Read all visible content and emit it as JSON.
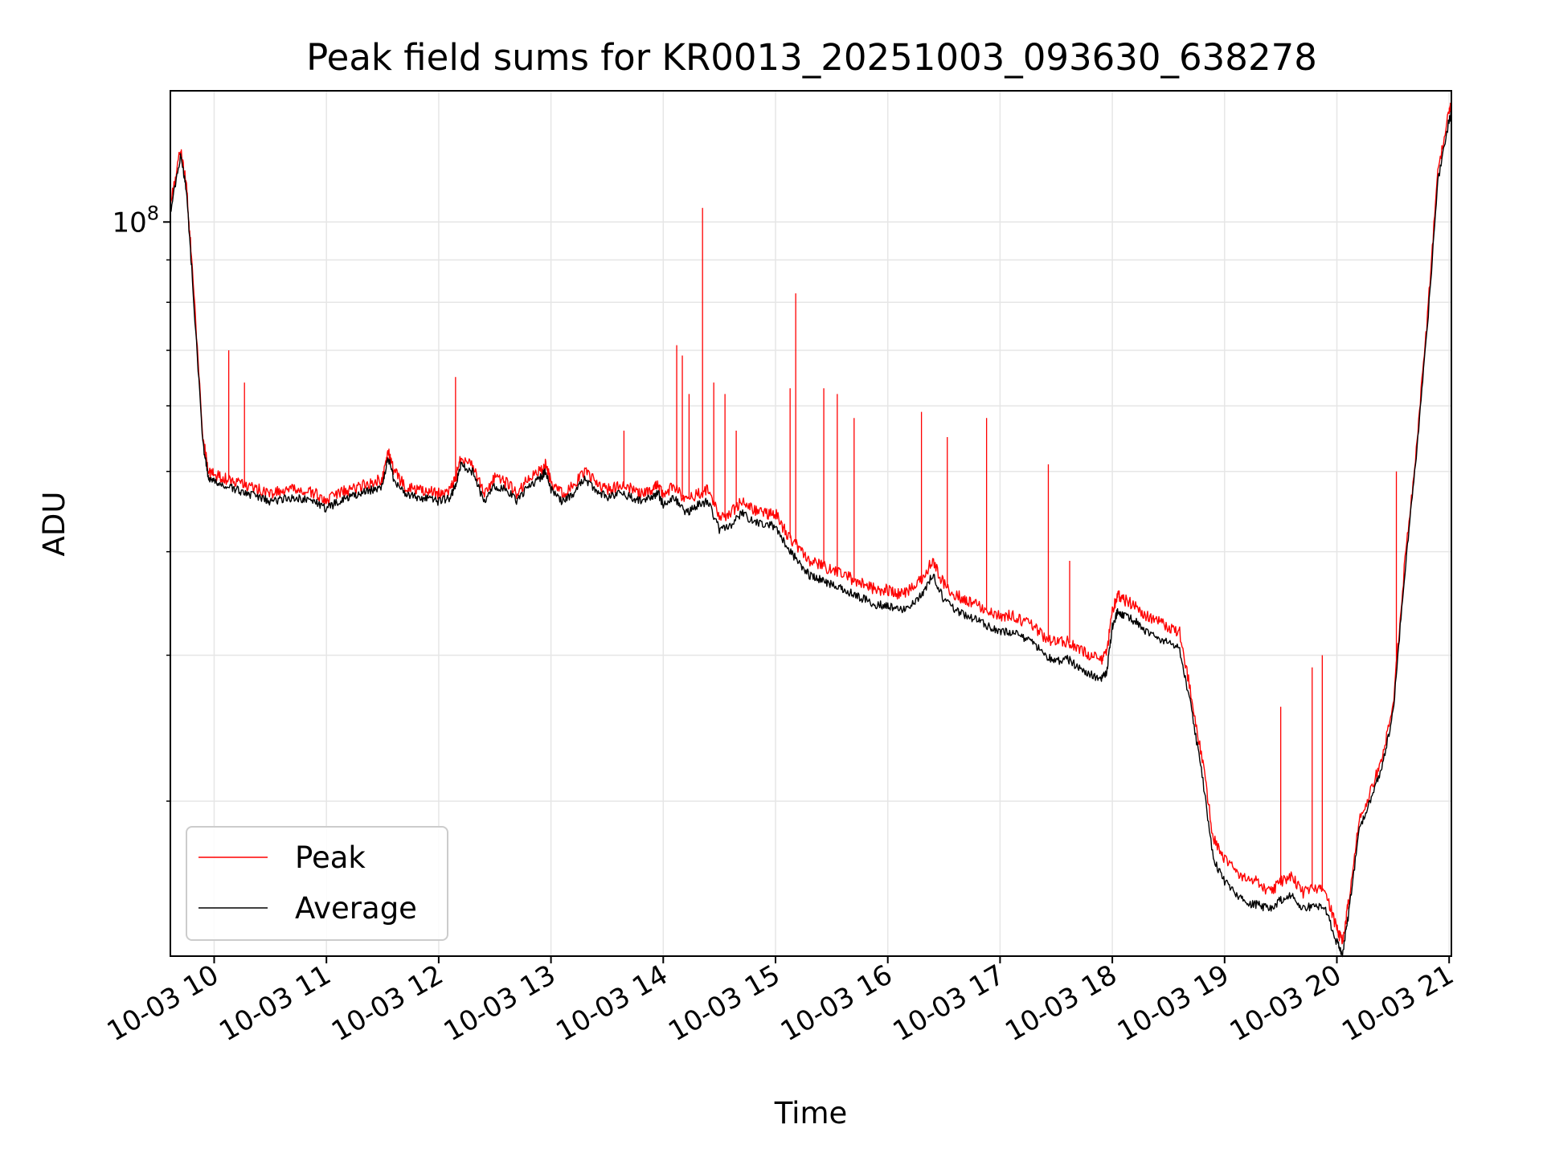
{
  "chart_data": {
    "type": "line",
    "title": "Peak field sums for KR0013_20251003_093630_638278",
    "xlabel": "Time",
    "ylabel": "ADU",
    "y_scale": "log",
    "grid": true,
    "legend_position": "lower-left",
    "x_tick_labels": [
      "10-03 10",
      "10-03 11",
      "10-03 12",
      "10-03 13",
      "10-03 14",
      "10-03 15",
      "10-03 16",
      "10-03 17",
      "10-03 18",
      "10-03 19",
      "10-03 20",
      "10-03 21"
    ],
    "x_tick_hours": [
      10,
      11,
      12,
      13,
      14,
      15,
      16,
      17,
      18,
      19,
      20,
      21
    ],
    "x_range_hours": [
      9.61,
      21.02
    ],
    "y_range": [
      13000000,
      144000000
    ],
    "y_major_ticks": [
      {
        "value": 100000000,
        "base": "10",
        "exponent": "8"
      }
    ],
    "y_minor_ticks": [
      20000000,
      30000000,
      40000000,
      50000000,
      60000000,
      70000000,
      80000000,
      90000000
    ],
    "x_hours": [
      9.61,
      9.7,
      9.75,
      9.8,
      9.9,
      9.95,
      10.0,
      10.1,
      10.2,
      10.3,
      10.4,
      10.5,
      10.6,
      10.7,
      10.8,
      10.9,
      11.0,
      11.1,
      11.2,
      11.3,
      11.4,
      11.5,
      11.55,
      11.6,
      11.7,
      11.8,
      11.9,
      12.0,
      12.1,
      12.15,
      12.2,
      12.3,
      12.4,
      12.5,
      12.6,
      12.7,
      12.8,
      12.9,
      12.95,
      13.0,
      13.1,
      13.2,
      13.3,
      13.4,
      13.5,
      13.6,
      13.7,
      13.8,
      13.9,
      13.95,
      14.0,
      14.1,
      14.2,
      14.3,
      14.4,
      14.5,
      14.6,
      14.7,
      14.8,
      14.9,
      15.0,
      15.1,
      15.2,
      15.3,
      15.4,
      15.5,
      15.6,
      15.7,
      15.8,
      15.9,
      16.0,
      16.1,
      16.2,
      16.3,
      16.4,
      16.5,
      16.6,
      16.7,
      16.8,
      16.9,
      17.0,
      17.1,
      17.2,
      17.3,
      17.4,
      17.5,
      17.6,
      17.7,
      17.8,
      17.9,
      17.95,
      18.0,
      18.05,
      18.1,
      18.2,
      18.3,
      18.4,
      18.5,
      18.6,
      18.7,
      18.8,
      18.9,
      19.0,
      19.1,
      19.2,
      19.3,
      19.4,
      19.5,
      19.6,
      19.7,
      19.8,
      19.9,
      20.0,
      20.05,
      20.1,
      20.2,
      20.3,
      20.4,
      20.5,
      20.6,
      20.7,
      20.8,
      20.9,
      21.0,
      21.02
    ],
    "series": [
      {
        "name": "Peak",
        "color": "#ff0000",
        "values": [
          105000000,
          122000000,
          112000000,
          90000000,
          55000000,
          50000000,
          49500000,
          49000000,
          48500000,
          48000000,
          47500000,
          47000000,
          47300000,
          47500000,
          47300000,
          47000000,
          46000000,
          47000000,
          47500000,
          48000000,
          48500000,
          49000000,
          53000000,
          50000000,
          48000000,
          47500000,
          47300000,
          47000000,
          47500000,
          49000000,
          52000000,
          51000000,
          47000000,
          49000000,
          48500000,
          47000000,
          49000000,
          50000000,
          51000000,
          48500000,
          47000000,
          48000000,
          50000000,
          48500000,
          47500000,
          48000000,
          47700000,
          47000000,
          47500000,
          48200000,
          47000000,
          48000000,
          46000000,
          47000000,
          47500000,
          44000000,
          44500000,
          46000000,
          45000000,
          44500000,
          44500000,
          42000000,
          40500000,
          39000000,
          38500000,
          38000000,
          37500000,
          37000000,
          36500000,
          36000000,
          36000000,
          35500000,
          36000000,
          37000000,
          39000000,
          36500000,
          35500000,
          35000000,
          34500000,
          34000000,
          33500000,
          33500000,
          33000000,
          32500000,
          31500000,
          31000000,
          31200000,
          30500000,
          30000000,
          29500000,
          30200000,
          34000000,
          35500000,
          35000000,
          34500000,
          33500000,
          33000000,
          32500000,
          32000000,
          27000000,
          22500000,
          18000000,
          17000000,
          16500000,
          16000000,
          16000000,
          15500000,
          16000000,
          16200000,
          15500000,
          15800000,
          15500000,
          14000000,
          13500000,
          15000000,
          19000000,
          20500000,
          22500000,
          26000000,
          38000000,
          52000000,
          75000000,
          115000000,
          136000000,
          138000000
        ]
      },
      {
        "name": "Average",
        "color": "#000000",
        "values": [
          103000000,
          120000000,
          110000000,
          88000000,
          54000000,
          49000000,
          48500000,
          48000000,
          47500000,
          47000000,
          46500000,
          46000000,
          46300000,
          46500000,
          46300000,
          46000000,
          45000000,
          46000000,
          46500000,
          47000000,
          47500000,
          48000000,
          52000000,
          49000000,
          47000000,
          46500000,
          46300000,
          46000000,
          46500000,
          48000000,
          51000000,
          50000000,
          46000000,
          48000000,
          47500000,
          46000000,
          48000000,
          49000000,
          50000000,
          47500000,
          46000000,
          47000000,
          49000000,
          47500000,
          46500000,
          47000000,
          46700000,
          46000000,
          46500000,
          47200000,
          45500000,
          46500000,
          44500000,
          45500000,
          46000000,
          42500000,
          43000000,
          44500000,
          43500000,
          43000000,
          43000000,
          40500000,
          39000000,
          37500000,
          37000000,
          36500000,
          36000000,
          35500000,
          35000000,
          34500000,
          34500000,
          34000000,
          34500000,
          35500000,
          37500000,
          35000000,
          34000000,
          33500000,
          33000000,
          32500000,
          32000000,
          32000000,
          31500000,
          31000000,
          30000000,
          29500000,
          29700000,
          29000000,
          28500000,
          28000000,
          28700000,
          32500000,
          34000000,
          33500000,
          33000000,
          32000000,
          31500000,
          31000000,
          30500000,
          26000000,
          21500000,
          17000000,
          16000000,
          15500000,
          15000000,
          15000000,
          14800000,
          15200000,
          15400000,
          14800000,
          15000000,
          14800000,
          13500000,
          13100000,
          14500000,
          18500000,
          20000000,
          22000000,
          25500000,
          37000000,
          51000000,
          73000000,
          112000000,
          133000000,
          135000000
        ]
      }
    ],
    "peak_spikes": [
      {
        "x": 10.13,
        "value": 70000000
      },
      {
        "x": 10.27,
        "value": 64000000
      },
      {
        "x": 12.15,
        "value": 65000000
      },
      {
        "x": 13.65,
        "value": 56000000
      },
      {
        "x": 14.12,
        "value": 71000000
      },
      {
        "x": 14.17,
        "value": 69000000
      },
      {
        "x": 14.23,
        "value": 62000000
      },
      {
        "x": 14.35,
        "value": 104000000
      },
      {
        "x": 14.45,
        "value": 64000000
      },
      {
        "x": 14.55,
        "value": 62000000
      },
      {
        "x": 14.65,
        "value": 56000000
      },
      {
        "x": 15.13,
        "value": 63000000
      },
      {
        "x": 15.18,
        "value": 82000000
      },
      {
        "x": 15.43,
        "value": 63000000
      },
      {
        "x": 15.55,
        "value": 62000000
      },
      {
        "x": 15.7,
        "value": 58000000
      },
      {
        "x": 16.3,
        "value": 59000000
      },
      {
        "x": 16.53,
        "value": 55000000
      },
      {
        "x": 16.88,
        "value": 58000000
      },
      {
        "x": 17.43,
        "value": 51000000
      },
      {
        "x": 17.62,
        "value": 39000000
      },
      {
        "x": 19.5,
        "value": 26000000
      },
      {
        "x": 19.78,
        "value": 29000000
      },
      {
        "x": 19.87,
        "value": 30000000
      },
      {
        "x": 20.53,
        "value": 50000000
      }
    ],
    "legend": [
      {
        "label": "Peak",
        "color": "#ff0000"
      },
      {
        "label": "Average",
        "color": "#000000"
      }
    ]
  }
}
